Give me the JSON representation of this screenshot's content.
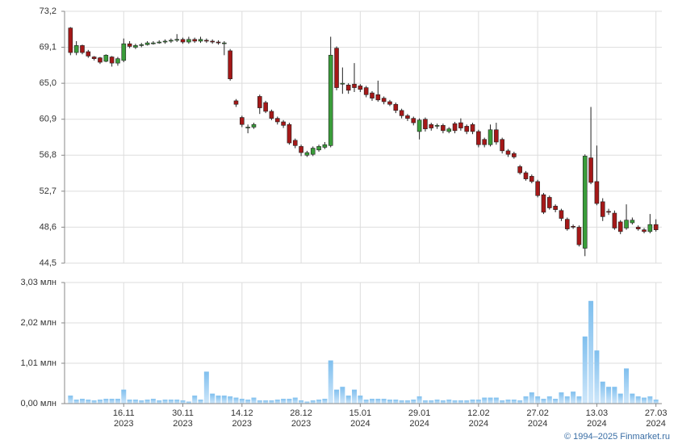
{
  "chart_data": [
    {
      "type": "candlestick",
      "categories": [
        null,
        null,
        null,
        null,
        null,
        null,
        null,
        null,
        null,
        "16.11 2023",
        null,
        null,
        null,
        null,
        null,
        null,
        null,
        null,
        null,
        "30.11 2023",
        null,
        null,
        null,
        null,
        null,
        null,
        null,
        null,
        null,
        "14.12 2023",
        null,
        null,
        null,
        null,
        null,
        null,
        null,
        null,
        null,
        "28.12 2023",
        null,
        null,
        null,
        null,
        null,
        null,
        null,
        null,
        null,
        "15.01 2024",
        null,
        null,
        null,
        null,
        null,
        null,
        null,
        null,
        null,
        "29.01 2024",
        null,
        null,
        null,
        null,
        null,
        null,
        null,
        null,
        null,
        "12.02 2024",
        null,
        null,
        null,
        null,
        null,
        null,
        null,
        null,
        null,
        "27.02 2024",
        null,
        null,
        null,
        null,
        null,
        null,
        null,
        null,
        null,
        "13.03 2024",
        null,
        null,
        null,
        null,
        null,
        null,
        null,
        null,
        null,
        "27.03 2024"
      ],
      "open": [
        71.3,
        68.5,
        69.3,
        68.6,
        68.0,
        67.9,
        67.5,
        68.0,
        67.3,
        67.6,
        69.5,
        69.1,
        69.3,
        69.4,
        69.5,
        69.6,
        69.7,
        69.8,
        69.9,
        70.0,
        69.7,
        70.0,
        69.8,
        69.9,
        69.8,
        69.7,
        69.6,
        68.7,
        63.0,
        61.1,
        60.0,
        60.0,
        63.5,
        62.8,
        61.8,
        61.0,
        60.6,
        60.3,
        58.5,
        57.8,
        56.8,
        56.9,
        57.4,
        57.7,
        57.9,
        69.0,
        64.9,
        64.8,
        64.9,
        64.7,
        64.5,
        63.9,
        63.7,
        63.3,
        62.9,
        62.6,
        61.9,
        61.3,
        61.0,
        59.5,
        60.9,
        60.3,
        60.1,
        60.2,
        59.5,
        60.4,
        60.5,
        60.1,
        60.3,
        59.5,
        58.6,
        58.0,
        59.7,
        58.6,
        57.3,
        57.0,
        55.5,
        54.8,
        54.4,
        53.8,
        52.3,
        52.0,
        51.0,
        50.5,
        49.5,
        48.7,
        48.6,
        46.2,
        56.5,
        53.8,
        51.5,
        50.4,
        50.2,
        49.2,
        48.5,
        49.1,
        48.6,
        48.3,
        48.1,
        48.9
      ],
      "high": [
        71.4,
        69.8,
        69.4,
        68.8,
        68.1,
        68.0,
        68.3,
        68.1,
        68.0,
        70.1,
        69.8,
        69.5,
        69.6,
        69.8,
        69.8,
        69.9,
        70.0,
        70.1,
        70.6,
        70.2,
        70.3,
        70.2,
        70.3,
        70.1,
        70.0,
        69.9,
        69.8,
        68.9,
        63.2,
        61.3,
        60.3,
        60.5,
        63.7,
        63.0,
        62.0,
        61.2,
        60.8,
        60.5,
        58.7,
        58.0,
        57.3,
        57.8,
        58.0,
        58.3,
        70.3,
        69.2,
        66.8,
        65.0,
        67.3,
        64.9,
        64.7,
        64.1,
        65.3,
        63.5,
        63.1,
        62.8,
        62.1,
        61.5,
        61.2,
        61.0,
        61.1,
        60.5,
        60.4,
        60.4,
        60.0,
        60.6,
        61.0,
        60.3,
        60.5,
        59.7,
        58.8,
        60.3,
        60.5,
        58.8,
        57.5,
        57.2,
        55.7,
        55.0,
        54.6,
        54.0,
        52.5,
        52.2,
        51.2,
        50.7,
        49.7,
        48.9,
        48.8,
        56.9,
        62.3,
        57.9,
        51.9,
        50.7,
        50.5,
        49.4,
        51.2,
        49.7,
        48.8,
        48.5,
        50.1,
        49.5
      ],
      "low": [
        68.2,
        68.2,
        68.3,
        67.9,
        67.6,
        67.2,
        67.4,
        66.9,
        67.0,
        67.4,
        69.0,
        68.9,
        69.1,
        69.3,
        69.4,
        69.5,
        69.5,
        69.6,
        69.7,
        69.5,
        69.5,
        69.6,
        69.6,
        69.6,
        69.5,
        69.4,
        68.2,
        65.3,
        62.3,
        60.0,
        59.3,
        59.8,
        61.5,
        61.6,
        60.8,
        60.3,
        59.9,
        58.0,
        57.6,
        56.7,
        56.6,
        56.7,
        57.2,
        57.5,
        57.7,
        64.2,
        63.8,
        63.8,
        64.0,
        64.0,
        63.4,
        63.0,
        62.9,
        62.6,
        62.4,
        61.6,
        61.0,
        60.7,
        60.2,
        58.6,
        59.5,
        59.6,
        59.8,
        59.3,
        59.3,
        59.3,
        59.6,
        59.2,
        59.2,
        57.7,
        57.7,
        57.8,
        58.0,
        57.0,
        56.6,
        56.4,
        54.6,
        53.9,
        53.6,
        52.0,
        50.1,
        50.6,
        50.3,
        49.3,
        48.2,
        48.4,
        46.4,
        45.3,
        53.5,
        51.1,
        49.3,
        50.0,
        48.3,
        47.8,
        48.3,
        48.9,
        48.2,
        47.9,
        47.9,
        48.1
      ],
      "close": [
        68.5,
        69.3,
        68.5,
        68.1,
        67.8,
        67.4,
        68.2,
        67.3,
        67.8,
        69.5,
        69.2,
        69.3,
        69.4,
        69.6,
        69.6,
        69.7,
        69.8,
        69.9,
        70.0,
        69.7,
        70.0,
        69.8,
        70.0,
        69.8,
        69.7,
        69.6,
        69.6,
        65.5,
        62.6,
        60.3,
        60.0,
        60.3,
        62.2,
        61.8,
        61.0,
        60.6,
        60.2,
        58.2,
        57.9,
        57.1,
        57.1,
        57.6,
        57.8,
        58.0,
        68.2,
        64.5,
        65.0,
        64.2,
        64.5,
        64.3,
        63.7,
        63.3,
        63.1,
        62.9,
        62.6,
        61.9,
        61.3,
        61.0,
        60.5,
        60.8,
        59.8,
        59.9,
        60.2,
        59.6,
        59.8,
        59.6,
        59.9,
        59.5,
        59.5,
        58.0,
        58.0,
        59.7,
        58.3,
        57.3,
        56.9,
        56.6,
        54.8,
        54.1,
        53.8,
        52.2,
        50.3,
        50.8,
        50.6,
        49.6,
        48.4,
        48.6,
        46.6,
        56.7,
        53.7,
        51.3,
        49.8,
        50.3,
        48.5,
        48.1,
        49.4,
        49.4,
        48.4,
        48.1,
        48.9,
        48.3
      ],
      "up_color": "#3a9d3a",
      "down_color": "#a51818",
      "ylim": [
        44.5,
        73.2
      ],
      "yticks": [
        {
          "value": 44.5,
          "label": "44,5"
        },
        {
          "value": 48.6,
          "label": "48,6"
        },
        {
          "value": 52.7,
          "label": "52,7"
        },
        {
          "value": 56.8,
          "label": "56,8"
        },
        {
          "value": 60.9,
          "label": "60,9"
        },
        {
          "value": 65.0,
          "label": "65,0"
        },
        {
          "value": 69.1,
          "label": "69,1"
        },
        {
          "value": 73.2,
          "label": "73,2"
        }
      ],
      "grid": true
    },
    {
      "type": "bar",
      "values": [
        0.2,
        0.1,
        0.12,
        0.1,
        0.08,
        0.1,
        0.12,
        0.12,
        0.12,
        0.35,
        0.1,
        0.1,
        0.08,
        0.1,
        0.12,
        0.08,
        0.1,
        0.1,
        0.1,
        0.08,
        0.05,
        0.2,
        0.1,
        0.8,
        0.25,
        0.2,
        0.2,
        0.18,
        0.15,
        0.12,
        0.1,
        0.15,
        0.08,
        0.08,
        0.08,
        0.1,
        0.12,
        0.12,
        0.15,
        0.08,
        0.05,
        0.08,
        0.1,
        0.12,
        1.08,
        0.35,
        0.42,
        0.2,
        0.35,
        0.2,
        0.1,
        0.12,
        0.12,
        0.12,
        0.1,
        0.1,
        0.08,
        0.08,
        0.1,
        0.18,
        0.08,
        0.08,
        0.1,
        0.08,
        0.1,
        0.08,
        0.08,
        0.08,
        0.1,
        0.1,
        0.15,
        0.15,
        0.15,
        0.08,
        0.1,
        0.1,
        0.08,
        0.18,
        0.28,
        0.18,
        0.12,
        0.18,
        0.12,
        0.28,
        0.18,
        0.3,
        0.18,
        1.68,
        2.57,
        1.33,
        0.55,
        0.42,
        0.42,
        0.25,
        0.88,
        0.25,
        0.18,
        0.15,
        0.18,
        0.1
      ],
      "color": "#9fd0f5",
      "ylim": [
        0,
        3.03
      ],
      "yticks": [
        {
          "value": 0,
          "label": "0,00 млн"
        },
        {
          "value": 1.01,
          "label": "1,01 млн"
        },
        {
          "value": 2.02,
          "label": "2,02 млн"
        },
        {
          "value": 3.03,
          "label": "3,03 млн"
        }
      ],
      "grid": true
    }
  ],
  "footer": "© 1994–2025 Finmarket.ru"
}
